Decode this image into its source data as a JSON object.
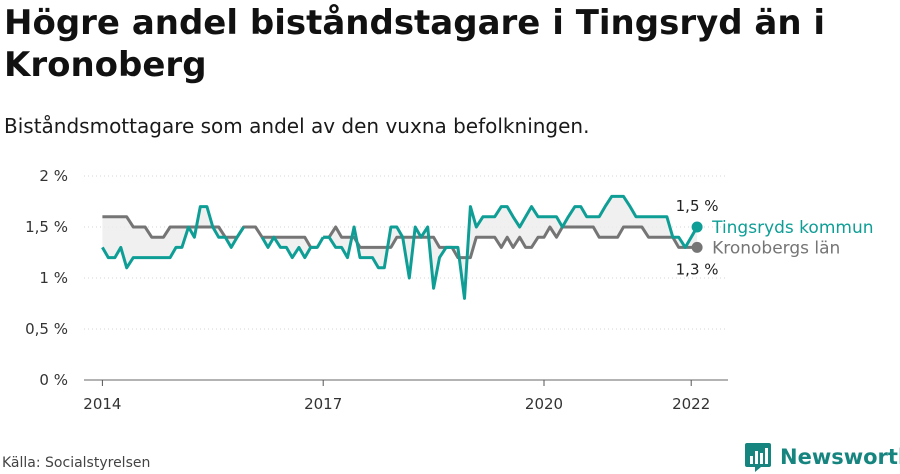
{
  "title": "Högre andel biståndstagare i Tingsryd än i Kronoberg",
  "subtitle": "Biståndsmottagare som andel av den vuxna befolkningen.",
  "source": "Källa: Socialstyrelsen",
  "brand": {
    "name": "Newsworthy",
    "icon": "bar-chart-logo-icon"
  },
  "colors": {
    "primary": "#0e9e96",
    "secondary": "#757575",
    "band": "#ececec",
    "grid": "#d6d6d6"
  },
  "chart_data": {
    "type": "line",
    "title": "Högre andel biståndstagare i Tingsryd än i Kronoberg",
    "subtitle": "Biståndsmottagare som andel av den vuxna befolkningen.",
    "xlabel": "",
    "ylabel": "",
    "x_range": [
      2013.75,
      2022.5
    ],
    "ylim": [
      0,
      2
    ],
    "y_ticks": [
      0,
      0.5,
      1,
      1.5,
      2
    ],
    "y_tick_labels": [
      "0 %",
      "0,5 %",
      "1 %",
      "1,5 %",
      "2 %"
    ],
    "x_ticks": [
      2014,
      2017,
      2020,
      2022
    ],
    "x_tick_labels": [
      "2014",
      "2017",
      "2020",
      "2022"
    ],
    "grid": true,
    "legend": "right",
    "series": [
      {
        "name": "Tingsryds kommun",
        "color": "#0e9e96",
        "end_label": "1,5 %",
        "points": [
          [
            2014.0,
            1.3
          ],
          [
            2014.08,
            1.2
          ],
          [
            2014.17,
            1.2
          ],
          [
            2014.25,
            1.3
          ],
          [
            2014.33,
            1.1
          ],
          [
            2014.42,
            1.2
          ],
          [
            2014.5,
            1.2
          ],
          [
            2014.58,
            1.2
          ],
          [
            2014.67,
            1.2
          ],
          [
            2014.75,
            1.2
          ],
          [
            2014.83,
            1.2
          ],
          [
            2014.92,
            1.2
          ],
          [
            2015.0,
            1.3
          ],
          [
            2015.08,
            1.3
          ],
          [
            2015.17,
            1.5
          ],
          [
            2015.25,
            1.4
          ],
          [
            2015.33,
            1.7
          ],
          [
            2015.42,
            1.7
          ],
          [
            2015.5,
            1.5
          ],
          [
            2015.58,
            1.4
          ],
          [
            2015.67,
            1.4
          ],
          [
            2015.75,
            1.3
          ],
          [
            2015.83,
            1.4
          ],
          [
            2015.92,
            1.5
          ],
          null,
          [
            2016.17,
            1.4
          ],
          [
            2016.25,
            1.3
          ],
          [
            2016.33,
            1.4
          ],
          [
            2016.42,
            1.3
          ],
          [
            2016.5,
            1.3
          ],
          [
            2016.58,
            1.2
          ],
          [
            2016.67,
            1.3
          ],
          [
            2016.75,
            1.2
          ],
          [
            2016.83,
            1.3
          ],
          [
            2016.92,
            1.3
          ],
          [
            2017.0,
            1.4
          ],
          null,
          [
            2017.0,
            1.4
          ],
          [
            2017.08,
            1.4
          ],
          [
            2017.17,
            1.3
          ],
          [
            2017.25,
            1.3
          ],
          [
            2017.33,
            1.2
          ],
          [
            2017.42,
            1.5
          ],
          [
            2017.5,
            1.2
          ],
          [
            2017.58,
            1.2
          ],
          [
            2017.67,
            1.2
          ],
          [
            2017.75,
            1.1
          ],
          [
            2017.83,
            1.1
          ],
          [
            2017.92,
            1.5
          ],
          [
            2018.0,
            1.5
          ],
          [
            2018.08,
            1.4
          ],
          [
            2018.17,
            1.0
          ],
          [
            2018.25,
            1.5
          ],
          [
            2018.33,
            1.4
          ],
          [
            2018.42,
            1.5
          ],
          [
            2018.5,
            0.9
          ],
          [
            2018.58,
            1.2
          ],
          [
            2018.67,
            1.3
          ],
          [
            2018.75,
            1.3
          ],
          [
            2018.83,
            1.3
          ],
          [
            2018.92,
            0.8
          ],
          [
            2019.0,
            1.7
          ],
          [
            2019.08,
            1.5
          ],
          [
            2019.17,
            1.6
          ],
          [
            2019.25,
            1.6
          ],
          [
            2019.33,
            1.6
          ],
          [
            2019.42,
            1.7
          ],
          [
            2019.5,
            1.7
          ],
          [
            2019.58,
            1.6
          ],
          [
            2019.67,
            1.5
          ],
          [
            2019.75,
            1.6
          ],
          [
            2019.83,
            1.7
          ],
          [
            2019.92,
            1.6
          ],
          [
            2020.0,
            1.6
          ],
          [
            2020.08,
            1.6
          ],
          [
            2020.17,
            1.6
          ],
          [
            2020.25,
            1.5
          ],
          [
            2020.33,
            1.6
          ],
          [
            2020.42,
            1.7
          ],
          [
            2020.5,
            1.7
          ],
          [
            2020.58,
            1.6
          ],
          [
            2020.67,
            1.6
          ],
          [
            2020.75,
            1.6
          ],
          [
            2020.83,
            1.7
          ],
          [
            2020.92,
            1.8
          ],
          [
            2021.0,
            1.8
          ],
          [
            2021.08,
            1.8
          ],
          [
            2021.17,
            1.7
          ],
          [
            2021.25,
            1.6
          ],
          [
            2021.33,
            1.6
          ],
          [
            2021.42,
            1.6
          ],
          [
            2021.5,
            1.6
          ],
          [
            2021.58,
            1.6
          ],
          [
            2021.67,
            1.6
          ],
          [
            2021.75,
            1.4
          ],
          [
            2021.83,
            1.4
          ],
          [
            2021.92,
            1.3
          ],
          [
            2022.0,
            1.4
          ],
          [
            2022.08,
            1.5
          ]
        ]
      },
      {
        "name": "Kronobergs län",
        "color": "#757575",
        "end_label": "1,3 %",
        "points": [
          [
            2014.0,
            1.6
          ],
          [
            2014.08,
            1.6
          ],
          [
            2014.17,
            1.6
          ],
          [
            2014.25,
            1.6
          ],
          [
            2014.33,
            1.6
          ],
          [
            2014.42,
            1.5
          ],
          [
            2014.5,
            1.5
          ],
          [
            2014.58,
            1.5
          ],
          [
            2014.67,
            1.4
          ],
          [
            2014.75,
            1.4
          ],
          [
            2014.83,
            1.4
          ],
          [
            2014.92,
            1.5
          ],
          [
            2015.0,
            1.5
          ],
          [
            2015.08,
            1.5
          ],
          [
            2015.17,
            1.5
          ],
          [
            2015.25,
            1.5
          ],
          [
            2015.33,
            1.5
          ],
          [
            2015.42,
            1.5
          ],
          [
            2015.5,
            1.5
          ],
          [
            2015.58,
            1.5
          ],
          [
            2015.67,
            1.4
          ],
          [
            2015.75,
            1.4
          ],
          [
            2015.83,
            1.4
          ],
          [
            2015.92,
            1.5
          ],
          [
            2016.0,
            1.5
          ],
          [
            2016.08,
            1.5
          ],
          [
            2016.17,
            1.4
          ],
          [
            2016.25,
            1.4
          ],
          [
            2016.33,
            1.4
          ],
          [
            2016.42,
            1.4
          ],
          [
            2016.5,
            1.4
          ],
          [
            2016.58,
            1.4
          ],
          [
            2016.67,
            1.4
          ],
          [
            2016.75,
            1.4
          ],
          [
            2016.83,
            1.3
          ],
          [
            2016.92,
            1.3
          ],
          null,
          [
            2017.0,
            1.4
          ],
          [
            2017.08,
            1.4
          ],
          [
            2017.17,
            1.5
          ],
          [
            2017.25,
            1.4
          ],
          [
            2017.33,
            1.4
          ],
          [
            2017.42,
            1.4
          ],
          [
            2017.5,
            1.3
          ],
          [
            2017.58,
            1.3
          ],
          [
            2017.67,
            1.3
          ],
          [
            2017.75,
            1.3
          ],
          [
            2017.83,
            1.3
          ],
          [
            2017.92,
            1.3
          ],
          [
            2018.0,
            1.4
          ],
          [
            2018.08,
            1.4
          ],
          [
            2018.17,
            1.4
          ],
          [
            2018.25,
            1.4
          ],
          [
            2018.33,
            1.4
          ],
          [
            2018.42,
            1.4
          ],
          [
            2018.5,
            1.4
          ],
          [
            2018.58,
            1.3
          ],
          [
            2018.67,
            1.3
          ],
          [
            2018.75,
            1.3
          ],
          [
            2018.83,
            1.2
          ],
          [
            2018.92,
            1.2
          ],
          [
            2019.0,
            1.2
          ],
          [
            2019.08,
            1.4
          ],
          [
            2019.17,
            1.4
          ],
          [
            2019.25,
            1.4
          ],
          [
            2019.33,
            1.4
          ],
          [
            2019.42,
            1.3
          ],
          [
            2019.5,
            1.4
          ],
          [
            2019.58,
            1.3
          ],
          [
            2019.67,
            1.4
          ],
          [
            2019.75,
            1.3
          ],
          [
            2019.83,
            1.3
          ],
          [
            2019.92,
            1.4
          ],
          [
            2020.0,
            1.4
          ],
          [
            2020.08,
            1.5
          ],
          [
            2020.17,
            1.4
          ],
          [
            2020.25,
            1.5
          ],
          [
            2020.33,
            1.5
          ],
          [
            2020.42,
            1.5
          ],
          [
            2020.5,
            1.5
          ],
          [
            2020.58,
            1.5
          ],
          [
            2020.67,
            1.5
          ],
          [
            2020.75,
            1.4
          ],
          [
            2020.83,
            1.4
          ],
          [
            2020.92,
            1.4
          ],
          [
            2021.0,
            1.4
          ],
          [
            2021.08,
            1.5
          ],
          [
            2021.17,
            1.5
          ],
          [
            2021.25,
            1.5
          ],
          [
            2021.33,
            1.5
          ],
          [
            2021.42,
            1.4
          ],
          [
            2021.5,
            1.4
          ],
          [
            2021.58,
            1.4
          ],
          [
            2021.67,
            1.4
          ],
          [
            2021.75,
            1.4
          ],
          [
            2021.83,
            1.3
          ],
          [
            2021.92,
            1.3
          ],
          [
            2022.0,
            1.3
          ],
          [
            2022.08,
            1.3
          ]
        ]
      }
    ]
  }
}
